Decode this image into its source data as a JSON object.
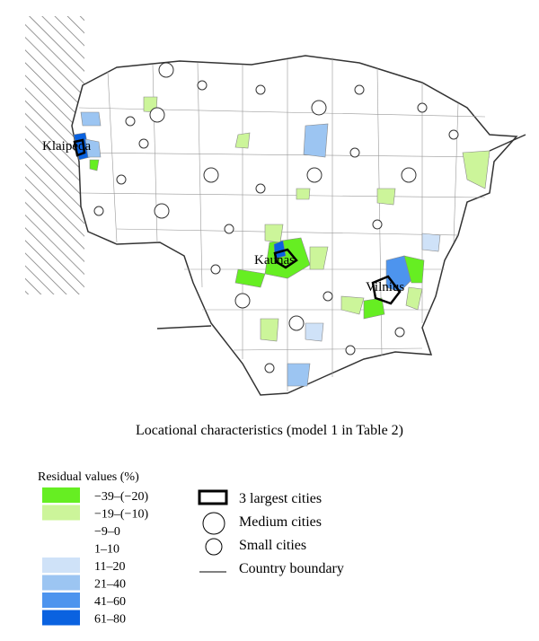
{
  "map": {
    "cities": [
      "Klaipeda",
      "Kaunas",
      "Vilnius"
    ],
    "caption": "Locational characteristics (model 1 in Table 2)",
    "legend": {
      "title": "Residual values (%)",
      "classes": [
        {
          "label": "−39–(−20)",
          "color": "#66ee22"
        },
        {
          "label": "−19–(−10)",
          "color": "#ccf59a"
        },
        {
          "label": "−9–0",
          "color": "#ffffff"
        },
        {
          "label": "1–10",
          "color": "#ffffff"
        },
        {
          "label": "11–20",
          "color": "#cfe2f8"
        },
        {
          "label": "21–40",
          "color": "#9cc5f2"
        },
        {
          "label": "41–60",
          "color": "#4d94ee"
        },
        {
          "label": "61–80",
          "color": "#0a62e0"
        }
      ],
      "symbols": [
        "3 largest cities",
        "Medium cities",
        "Small cities",
        "Country boundary"
      ]
    }
  }
}
